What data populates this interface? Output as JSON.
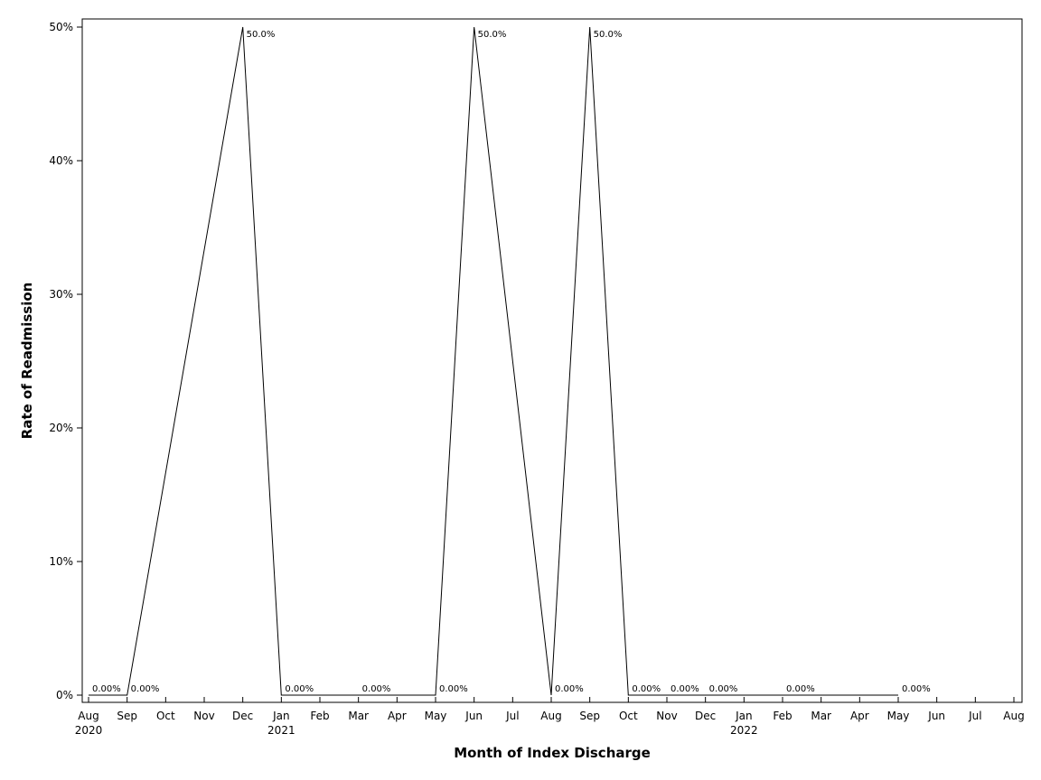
{
  "chart_data": {
    "type": "line",
    "xlabel": "Month of Index Discharge",
    "ylabel": "Rate of Readmission",
    "ylim": [
      0,
      50
    ],
    "x_range": [
      "2020-08",
      "2022-08"
    ],
    "y_ticks": [
      {
        "value": 0,
        "label": "0%"
      },
      {
        "value": 10,
        "label": "10%"
      },
      {
        "value": 20,
        "label": "20%"
      },
      {
        "value": 30,
        "label": "30%"
      },
      {
        "value": 40,
        "label": "40%"
      },
      {
        "value": 50,
        "label": "50%"
      }
    ],
    "x_ticks": [
      {
        "month": "2020-08",
        "label": "Aug",
        "year": "2020"
      },
      {
        "month": "2020-09",
        "label": "Sep"
      },
      {
        "month": "2020-10",
        "label": "Oct"
      },
      {
        "month": "2020-11",
        "label": "Nov"
      },
      {
        "month": "2020-12",
        "label": "Dec"
      },
      {
        "month": "2021-01",
        "label": "Jan",
        "year": "2021"
      },
      {
        "month": "2021-02",
        "label": "Feb"
      },
      {
        "month": "2021-03",
        "label": "Mar"
      },
      {
        "month": "2021-04",
        "label": "Apr"
      },
      {
        "month": "2021-05",
        "label": "May"
      },
      {
        "month": "2021-06",
        "label": "Jun"
      },
      {
        "month": "2021-07",
        "label": "Jul"
      },
      {
        "month": "2021-08",
        "label": "Aug"
      },
      {
        "month": "2021-09",
        "label": "Sep"
      },
      {
        "month": "2021-10",
        "label": "Oct"
      },
      {
        "month": "2021-11",
        "label": "Nov"
      },
      {
        "month": "2021-12",
        "label": "Dec"
      },
      {
        "month": "2022-01",
        "label": "Jan",
        "year": "2022"
      },
      {
        "month": "2022-02",
        "label": "Feb"
      },
      {
        "month": "2022-03",
        "label": "Mar"
      },
      {
        "month": "2022-04",
        "label": "Apr"
      },
      {
        "month": "2022-05",
        "label": "May"
      },
      {
        "month": "2022-06",
        "label": "Jun"
      },
      {
        "month": "2022-07",
        "label": "Jul"
      },
      {
        "month": "2022-08",
        "label": "Aug"
      }
    ],
    "grid": false,
    "series": [
      {
        "points": [
          {
            "x": "2020-08",
            "y": 0,
            "label": "0.00%"
          },
          {
            "x": "2020-09",
            "y": 0,
            "label": "0.00%"
          },
          {
            "x": "2020-12",
            "y": 50,
            "label": "50.0%"
          },
          {
            "x": "2021-01",
            "y": 0,
            "label": "0.00%"
          },
          {
            "x": "2021-03",
            "y": 0,
            "label": "0.00%"
          },
          {
            "x": "2021-05",
            "y": 0,
            "label": "0.00%"
          },
          {
            "x": "2021-06",
            "y": 50,
            "label": "50.0%"
          },
          {
            "x": "2021-08",
            "y": 0,
            "label": "0.00%"
          },
          {
            "x": "2021-09",
            "y": 50,
            "label": "50.0%"
          },
          {
            "x": "2021-10",
            "y": 0,
            "label": "0.00%"
          },
          {
            "x": "2021-11",
            "y": 0,
            "label": "0.00%"
          },
          {
            "x": "2021-12",
            "y": 0,
            "label": "0.00%"
          },
          {
            "x": "2022-02",
            "y": 0,
            "label": "0.00%"
          },
          {
            "x": "2022-05",
            "y": 0,
            "label": "0.00%"
          }
        ]
      }
    ]
  }
}
